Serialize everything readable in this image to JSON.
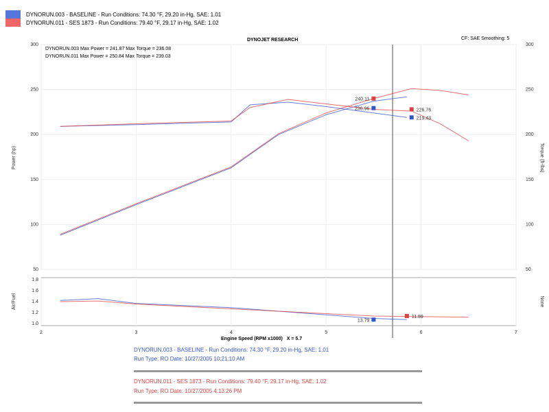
{
  "header": {
    "run1": "DYNORUN.003 - BASELINE  -  Run Conditions: 74.30 °F, 29.20 in-Hg, SAE: 1.01",
    "run2": "DYNORUN.011 - SES 1873  -  Run Conditions: 79.40 °F, 29.17 in-Hg, SAE: 1.02"
  },
  "footer": {
    "run1_line1": "DYNORUN.003 - BASELINE  -  Run Conditions: 74.30 °F, 29.20 in-Hg, SAE: 1.01",
    "run1_line2": "Run Type: RO  Date: 10/27/2005 10:21:10 AM",
    "run2_line1": "DYNORUN.011 - SES 1873  -  Run Conditions: 79.40 °F, 29.17 in-Hg, SAE: 1.02",
    "run2_line2": "Run Type: RO  Date: 10/27/2005 4:13:26 PM"
  },
  "colors": {
    "run1": "#3355cc",
    "run2": "#e04040"
  },
  "chart_data": {
    "type": "line",
    "title": "DYNOJET RESEARCH",
    "corner_note": "CF: SAE  Smoothing: 5",
    "xlabel": "Engine Speed (RPM x1000)",
    "cursor_label": "X = 5.7",
    "cursor_x": 5.7,
    "xlim": [
      2,
      7
    ],
    "xticks": [
      "2",
      "3",
      "4",
      "5",
      "6",
      "7"
    ],
    "upper": {
      "ylabel_left": "Power (hp)",
      "ylabel_right": "Torque (ft-lbs)",
      "ylim": [
        50,
        300
      ],
      "yticks": [
        "50",
        "100",
        "150",
        "200",
        "250",
        "300"
      ],
      "legend": [
        "DYNORUN.003  Max Power = 241.87    Max Torque = 236.08",
        "DYNORUN.011  Max Power = 250.84    Max Torque = 239.03"
      ],
      "series": [
        {
          "run": "run1",
          "kind": "power",
          "x": [
            2.2,
            3,
            4,
            4.5,
            5,
            5.5,
            5.85
          ],
          "y": [
            88,
            122,
            163,
            200,
            222,
            237,
            241.9
          ]
        },
        {
          "run": "run2",
          "kind": "power",
          "x": [
            2.2,
            3,
            4,
            4.5,
            5,
            5.5,
            5.9,
            6.2,
            6.5
          ],
          "y": [
            89,
            123,
            164,
            201,
            224,
            240,
            251,
            249,
            244
          ]
        },
        {
          "run": "run1",
          "kind": "torque",
          "x": [
            2.2,
            3,
            4,
            4.2,
            4.6,
            5,
            5.5,
            5.85
          ],
          "y": [
            209,
            211,
            214,
            233,
            236,
            231,
            224,
            219
          ]
        },
        {
          "run": "run2",
          "kind": "torque",
          "x": [
            2.2,
            3,
            4,
            4.2,
            4.6,
            5,
            5.5,
            5.9,
            6.2,
            6.5
          ],
          "y": [
            209,
            212,
            215,
            230,
            239,
            234,
            228,
            226,
            212,
            193
          ]
        }
      ],
      "cursor_values": [
        {
          "run": "run2",
          "value": "240.11",
          "x": 5.5,
          "y": 240
        },
        {
          "run": "run1",
          "value": "236.96",
          "x": 5.5,
          "y": 237
        },
        {
          "run": "run2",
          "value": "226.76",
          "x": 5.9,
          "y": 228
        },
        {
          "run": "run1",
          "value": "219.43",
          "x": 5.9,
          "y": 219
        }
      ]
    },
    "lower": {
      "ylabel_left": "Air/Fuel",
      "ylabel_right": "None",
      "ylim": [
        1.0,
        1.8
      ],
      "yticks": [
        "1.0",
        "1.2",
        "1.4",
        "1.6",
        "1.8"
      ],
      "series": [
        {
          "run": "run1",
          "x": [
            2.2,
            2.6,
            3,
            4,
            5,
            5.5,
            5.85
          ],
          "y": [
            1.42,
            1.45,
            1.37,
            1.3,
            1.18,
            1.12,
            1.1
          ]
        },
        {
          "run": "run2",
          "x": [
            2.2,
            2.6,
            3,
            4,
            5,
            5.5,
            6,
            6.5
          ],
          "y": [
            1.4,
            1.41,
            1.36,
            1.28,
            1.2,
            1.16,
            1.15,
            1.14
          ]
        }
      ],
      "cursor_values": [
        {
          "run": "run1",
          "value": "13.79",
          "x": 5.5,
          "y": 1.1
        },
        {
          "run": "run2",
          "value": "11.59",
          "x": 5.85,
          "y": 1.16
        }
      ]
    }
  }
}
